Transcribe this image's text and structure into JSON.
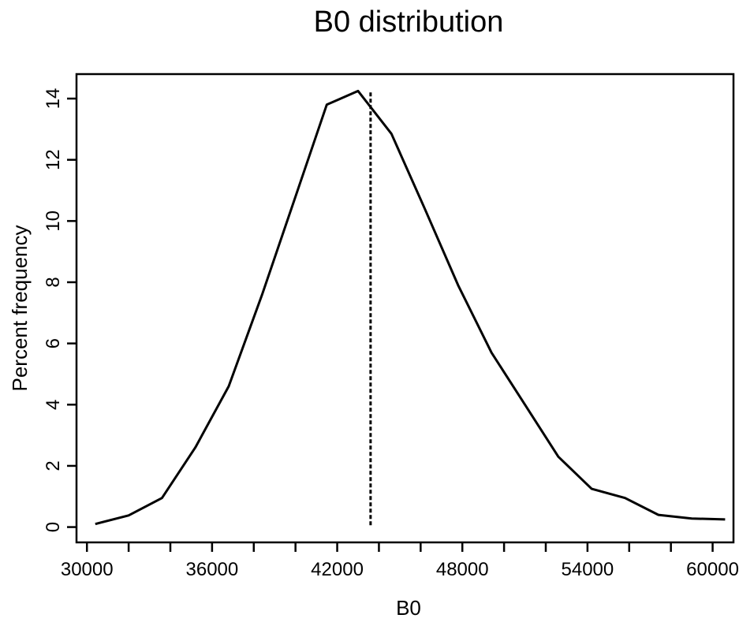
{
  "chart_data": {
    "type": "line",
    "title": "B0 distribution",
    "xlabel": "B0",
    "ylabel": "Percent frequency",
    "xlim": [
      29500,
      61000
    ],
    "ylim": [
      -0.5,
      14.8
    ],
    "xticks": [
      30000,
      32000,
      34000,
      36000,
      38000,
      40000,
      42000,
      44000,
      46000,
      48000,
      50000,
      52000,
      54000,
      56000,
      58000,
      60000
    ],
    "xtick_labels": [
      "30000",
      "",
      "",
      "36000",
      "",
      "",
      "42000",
      "",
      "",
      "48000",
      "",
      "",
      "54000",
      "",
      "",
      "60000"
    ],
    "yticks": [
      0,
      2,
      4,
      6,
      8,
      10,
      12,
      14
    ],
    "ytick_labels": [
      "0",
      "2",
      "4",
      "6",
      "8",
      "10",
      "12",
      "14"
    ],
    "grid": false,
    "series": [
      {
        "x": [
          30400,
          32000,
          33600,
          35200,
          36800,
          38400,
          40000,
          41500,
          43000,
          44600,
          46200,
          47800,
          49400,
          51000,
          52600,
          54200,
          55800,
          57400,
          59000,
          60600
        ],
        "y": [
          0.1,
          0.38,
          0.95,
          2.6,
          4.6,
          7.6,
          10.8,
          13.8,
          14.25,
          12.85,
          10.4,
          7.9,
          5.7,
          4.0,
          2.3,
          1.25,
          0.95,
          0.4,
          0.28,
          0.25
        ]
      }
    ],
    "reference_line": {
      "x": 43600,
      "style": "dashed"
    }
  }
}
